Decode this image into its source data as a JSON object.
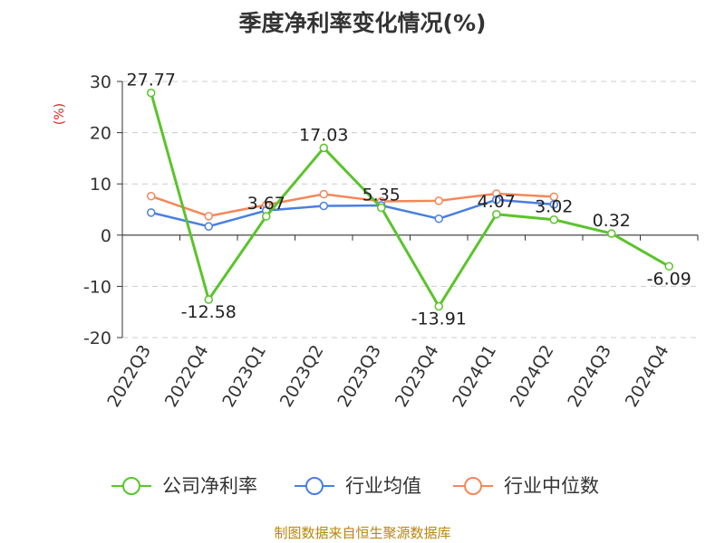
{
  "chart_data": {
    "type": "line",
    "title": "季度净利率变化情况(%)",
    "ylabel": "(%)",
    "xlabel": "",
    "ylim": [
      -20,
      30
    ],
    "yticks": [
      -20,
      -10,
      0,
      10,
      20,
      30
    ],
    "grid": true,
    "legend_position": "bottom",
    "categories": [
      "2022Q3",
      "2022Q4",
      "2023Q1",
      "2023Q2",
      "2023Q3",
      "2023Q4",
      "2024Q1",
      "2024Q2",
      "2024Q3",
      "2024Q4"
    ],
    "series": [
      {
        "name": "公司净利率",
        "color": "#5ac42b",
        "values": [
          27.77,
          -12.58,
          3.67,
          17.03,
          5.35,
          -13.91,
          4.07,
          3.02,
          0.32,
          -6.09
        ],
        "labels": [
          "27.77",
          "-12.58",
          "3.67",
          "17.03",
          "5.35",
          "-13.91",
          "4.07",
          "3.02",
          "0.32",
          "-6.09"
        ]
      },
      {
        "name": "行业均值",
        "color": "#4a7fe0",
        "values": [
          4.4,
          1.7,
          4.8,
          5.7,
          5.8,
          3.2,
          6.9,
          6.0,
          null,
          null
        ]
      },
      {
        "name": "行业中位数",
        "color": "#f4875a",
        "values": [
          7.6,
          3.7,
          5.9,
          8.0,
          6.6,
          6.7,
          8.1,
          7.5,
          null,
          null
        ]
      }
    ],
    "source": "制图数据来自恒生聚源数据库"
  }
}
